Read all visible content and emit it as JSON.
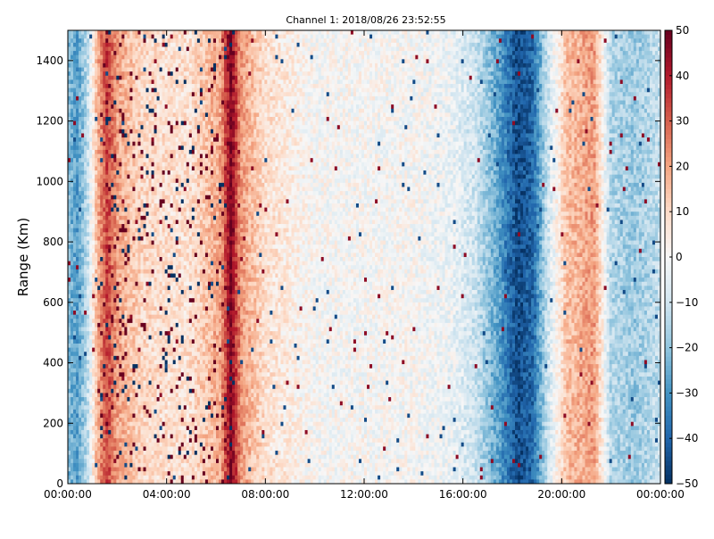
{
  "chart_data": {
    "type": "heatmap",
    "title": "Channel 1: 2018/08/26 23:52:55",
    "xlabel": "",
    "ylabel": "Range (Km)",
    "x_ticks": [
      "00:00:00",
      "04:00:00",
      "08:00:00",
      "12:00:00",
      "16:00:00",
      "20:00:00",
      "00:00:00"
    ],
    "x_hours": [
      0,
      4,
      8,
      12,
      16,
      20,
      24
    ],
    "xlim_hours": [
      0,
      24
    ],
    "y_ticks": [
      0,
      200,
      400,
      600,
      800,
      1000,
      1200,
      1400
    ],
    "ylim": [
      0,
      1500
    ],
    "colorbar": {
      "ticks": [
        50,
        40,
        30,
        20,
        10,
        0,
        -10,
        -20,
        -30,
        -40,
        -50
      ],
      "range": [
        -50,
        50
      ],
      "colormap": "RdBu_r",
      "colors": [
        "#053061",
        "#2166ac",
        "#4393c3",
        "#92c5de",
        "#d1e5f0",
        "#f7f7f7",
        "#fddbc7",
        "#f4a582",
        "#d6604d",
        "#b2182b",
        "#67001f"
      ]
    },
    "column_profile": {
      "hours": [
        0,
        0.4,
        0.8,
        1.2,
        1.6,
        2.0,
        3.0,
        4.0,
        5.0,
        6.2,
        6.6,
        7.0,
        8.0,
        10.0,
        12.0,
        14.0,
        15.5,
        16.5,
        17.5,
        18.2,
        18.8,
        19.5,
        20.2,
        20.8,
        21.3,
        22.0,
        23.0,
        24.0
      ],
      "values": [
        -22,
        -28,
        -12,
        18,
        35,
        20,
        10,
        8,
        8,
        20,
        48,
        22,
        8,
        0,
        0,
        0,
        -3,
        -10,
        -28,
        -45,
        -40,
        -8,
        15,
        18,
        22,
        -15,
        -18,
        -12
      ]
    }
  }
}
